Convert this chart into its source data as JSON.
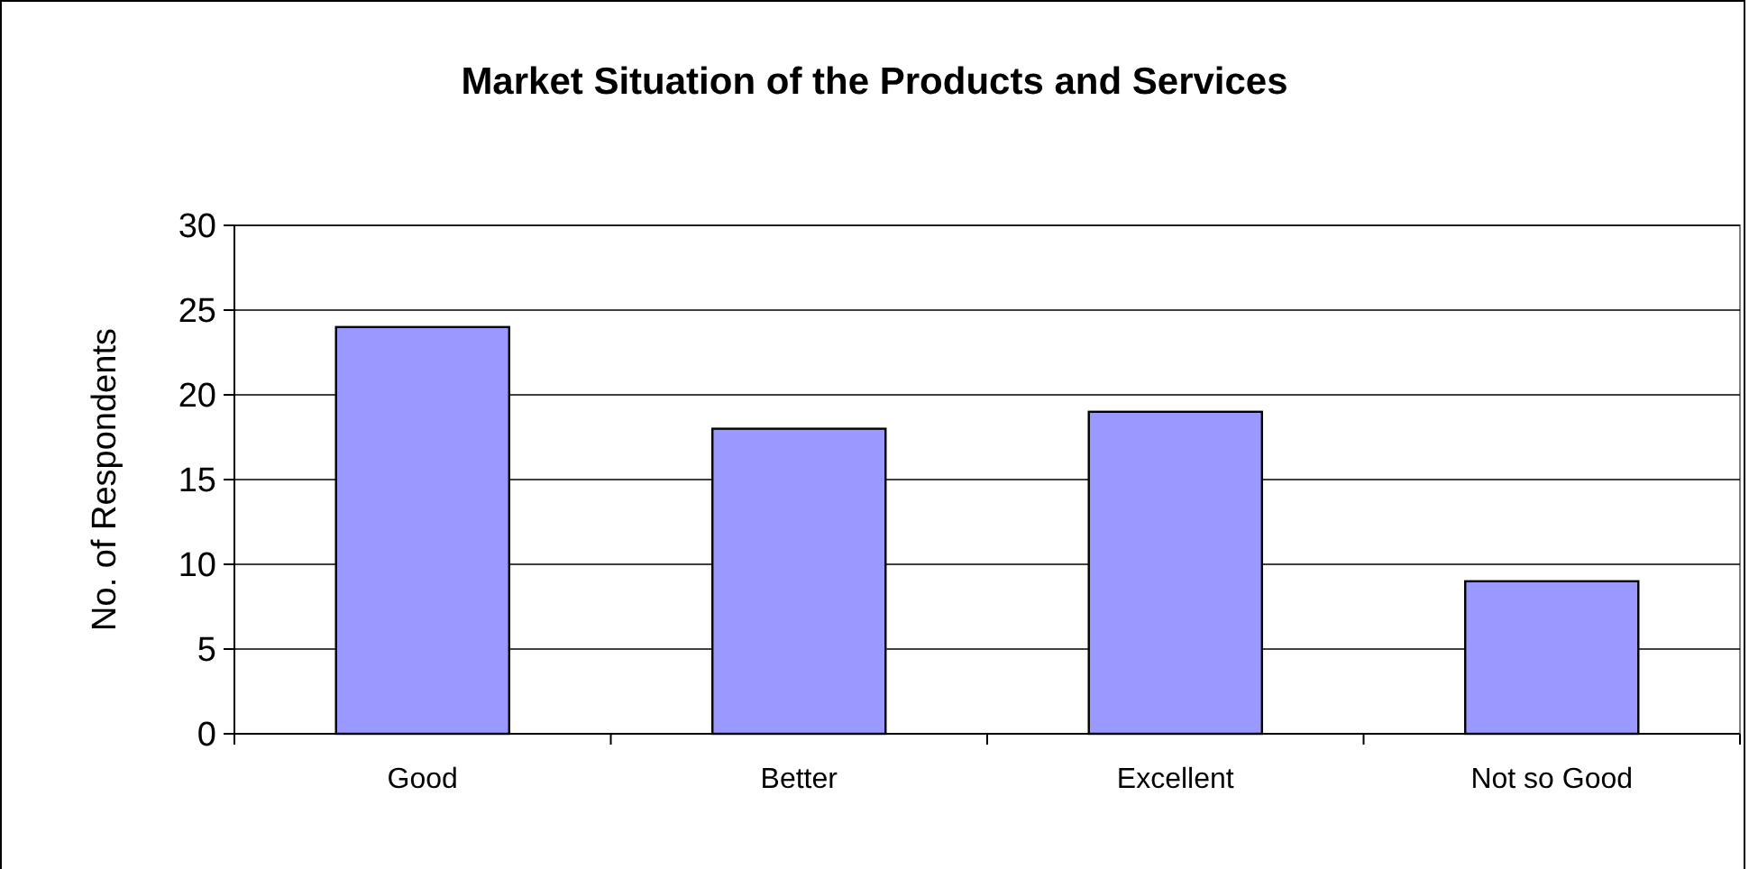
{
  "chart_data": {
    "type": "bar",
    "title": "Market Situation of the Products and Services",
    "ylabel": "No. of Respondents",
    "categories": [
      "Good",
      "Better",
      "Excellent",
      "Not so Good"
    ],
    "values": [
      24,
      18,
      19,
      9
    ],
    "color": "#9999ff",
    "ylim": [
      0,
      30
    ],
    "yticks": [
      0,
      5,
      10,
      15,
      20,
      25,
      30
    ],
    "grid": "y"
  }
}
